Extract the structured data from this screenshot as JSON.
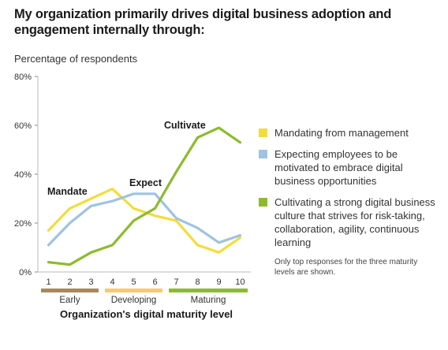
{
  "title": "My organization primarily drives digital business adoption and engagement internally through:",
  "subtitle": "Percentage of respondents",
  "legend": [
    {
      "label": "Mandating from management",
      "color": "#f2dd3c"
    },
    {
      "label": "Expecting employees to be motivated to embrace digital business opportunities",
      "color": "#9fc3e0"
    },
    {
      "label": "Cultivating a strong digital business culture that strives for risk-taking, collaboration, agility, continuous learning",
      "color": "#8dbb2f"
    }
  ],
  "footnote": "Only top responses for the three maturity levels are shown.",
  "chart_data": {
    "type": "line",
    "title": "My organization primarily drives digital business adoption and engagement internally through:",
    "ylabel": "Percentage of respondents",
    "xlabel": "Organization's digital maturity level",
    "x": [
      1,
      2,
      3,
      4,
      5,
      6,
      7,
      8,
      9,
      10
    ],
    "ylim": [
      0,
      80
    ],
    "yticks": [
      "0%",
      "20%",
      "40%",
      "60%",
      "80%"
    ],
    "grid": false,
    "legend_position": "right",
    "series": [
      {
        "name": "Mandating from management",
        "color": "#f2dd3c",
        "values": [
          17,
          26,
          30,
          34,
          26,
          23,
          21,
          11,
          8,
          14
        ]
      },
      {
        "name": "Expecting employees to be motivated to embrace digital business opportunities",
        "color": "#9fc3e0",
        "values": [
          11,
          20,
          27,
          29,
          32,
          32,
          22,
          18,
          12,
          15
        ]
      },
      {
        "name": "Cultivating a strong digital business culture that strives for risk-taking, collaboration, agility, continuous learning",
        "color": "#8dbb2f",
        "values": [
          4,
          3,
          8,
          11,
          21,
          26,
          41,
          55,
          59,
          53
        ]
      }
    ],
    "annotations": [
      {
        "text": "Mandate",
        "series": 0
      },
      {
        "text": "Expect",
        "series": 1
      },
      {
        "text": "Cultivate",
        "series": 2
      }
    ],
    "groups": [
      {
        "label": "Early",
        "from": 1,
        "to": 3,
        "color": "#a6895a"
      },
      {
        "label": "Developing",
        "from": 4,
        "to": 6,
        "color": "#f5cc6b"
      },
      {
        "label": "Maturing",
        "from": 7,
        "to": 10,
        "color": "#8dbb2f"
      }
    ]
  }
}
